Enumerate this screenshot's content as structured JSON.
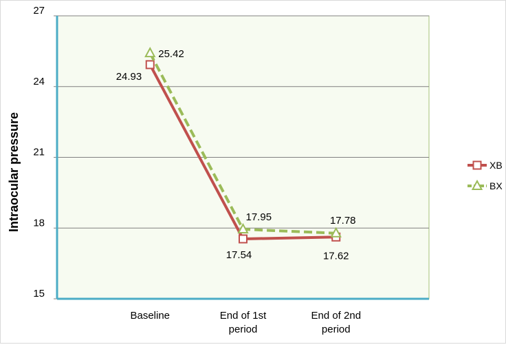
{
  "chart_data": {
    "type": "line",
    "categories": [
      "Baseline",
      "End of 1st period",
      "End of 2nd period"
    ],
    "category_label_lines": [
      [
        "Baseline"
      ],
      [
        "End of 1st",
        "period"
      ],
      [
        "End of 2nd",
        "period"
      ]
    ],
    "ylabel": "Intraocular pressure",
    "ylim": [
      15,
      27
    ],
    "yticks": [
      15,
      18,
      21,
      24,
      27
    ],
    "grid": true,
    "legend_position": "right",
    "series": [
      {
        "name": "XB",
        "values": [
          24.93,
          17.54,
          17.62
        ],
        "labels": [
          "24.93",
          "17.54",
          "17.62"
        ],
        "color": "#c0504d",
        "line": "solid",
        "marker": "square"
      },
      {
        "name": "BX",
        "values": [
          25.42,
          17.95,
          17.78
        ],
        "labels": [
          "25.42",
          "17.95",
          "17.78"
        ],
        "color": "#9bbb59",
        "line": "dashed",
        "marker": "triangle"
      }
    ],
    "colors": {
      "plot_background": "#f7fbf1",
      "plot_border": "#a6c178",
      "left_axis": "#4bacc6",
      "gridline": "#808080"
    }
  }
}
